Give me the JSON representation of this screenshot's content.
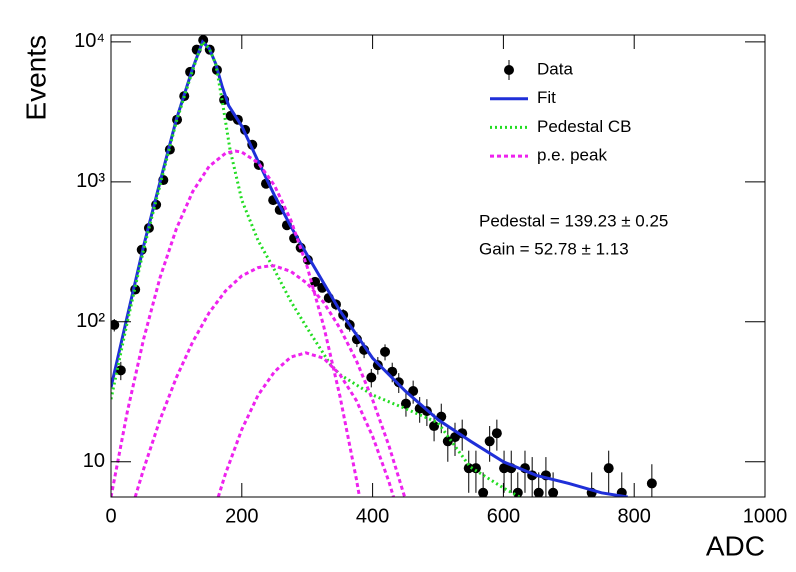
{
  "chart_data": {
    "type": "scatter",
    "x_label": "ADC",
    "y_label": "Events",
    "xlim": [
      0,
      1000
    ],
    "ylim": [
      5.6,
      11200
    ],
    "log_y": true,
    "xticks": [
      0,
      200,
      400,
      600,
      800,
      1000
    ],
    "yticks": [
      10,
      {
        "value": 100,
        "label": "10²"
      },
      {
        "value": 1000,
        "label": "10³"
      },
      {
        "value": 10000,
        "label": "10⁴"
      }
    ],
    "legend": "upper right",
    "annotations": [
      "Pedestal = 139.23 ± 0.25",
      "Gain = 52.78 ± 1.13"
    ],
    "series": [
      {
        "name": "Data",
        "style": "points",
        "color": "#000000",
        "x": [
          5,
          15,
          37,
          47,
          58,
          69,
          80,
          90,
          101,
          112,
          121,
          131,
          141,
          151,
          162,
          173,
          183,
          194,
          205,
          216,
          226,
          237,
          248,
          258,
          269,
          280,
          290,
          301,
          312,
          323,
          333,
          344,
          355,
          365,
          376,
          387,
          398,
          408,
          419,
          430,
          440,
          451,
          462,
          472,
          483,
          494,
          505,
          515,
          526,
          537,
          547,
          558,
          569,
          579,
          590,
          601,
          612,
          622,
          633,
          644,
          654,
          665,
          676,
          735,
          761,
          781,
          827
        ],
        "values": [
          95,
          45,
          170,
          327,
          468,
          686,
          1030,
          1700,
          2780,
          4100,
          6100,
          8800,
          10300,
          8800,
          6300,
          3850,
          2960,
          2780,
          2350,
          1840,
          1320,
          970,
          740,
          630,
          490,
          395,
          338,
          277,
          193,
          175,
          148,
          133,
          112,
          95,
          75,
          63,
          40,
          49,
          61,
          44,
          37,
          26,
          32,
          24,
          23,
          18,
          21,
          14,
          15,
          16,
          9,
          9,
          6,
          14,
          16,
          9,
          9,
          6,
          9,
          8,
          6,
          8,
          6,
          6,
          9,
          6,
          7
        ],
        "errors": [
          9.7,
          6.7,
          13,
          18,
          22,
          26,
          32,
          41,
          53,
          64,
          78,
          94,
          101,
          94,
          79,
          62,
          54,
          53,
          48,
          43,
          36,
          31,
          27,
          25,
          22,
          20,
          18,
          17,
          14,
          13,
          12,
          12,
          11,
          10,
          9,
          8,
          6,
          7,
          8,
          7,
          6,
          5,
          6,
          5,
          5,
          4,
          5,
          4,
          4,
          4,
          3,
          3,
          2.4,
          4,
          4,
          3,
          3,
          2.4,
          3,
          2.8,
          2.4,
          2.8,
          2.4,
          2.4,
          3,
          2.4,
          2.6
        ]
      },
      {
        "name": "Fit",
        "style": "solid",
        "color": "#1f2fd8",
        "x": [
          0,
          25,
          50,
          75,
          100,
          125,
          140,
          150,
          160,
          170,
          180,
          200,
          225,
          250,
          275,
          300,
          350,
          400,
          450,
          500,
          550,
          600,
          650,
          700,
          750,
          790
        ],
        "values": [
          34,
          110,
          350,
          1000,
          2800,
          6500,
          10000,
          9000,
          7000,
          4800,
          3500,
          2500,
          1400,
          800,
          480,
          300,
          120,
          55,
          32,
          20,
          14,
          10,
          8,
          7,
          6,
          5.6
        ]
      },
      {
        "name": "Pedestal CB",
        "style": "dotted",
        "color": "#22dd22",
        "x": [
          0,
          25,
          50,
          75,
          100,
          125,
          140,
          150,
          160,
          170,
          182,
          200,
          225,
          250,
          275,
          300,
          335,
          350,
          400,
          450,
          500,
          549,
          600,
          625
        ],
        "values": [
          28,
          100,
          330,
          950,
          2700,
          6300,
          10000,
          9000,
          7000,
          3800,
          1700,
          740,
          380,
          235,
          140,
          90,
          50,
          42,
          30,
          24,
          19,
          9.2,
          6.5,
          5.6
        ]
      },
      {
        "name": "p.e. peak",
        "style": "dashed",
        "color": "#ee22ee",
        "curves": [
          {
            "x": [
              0,
              25,
              50,
              75,
              100,
              125,
              150,
              175,
              190,
              200,
              225,
              250,
              275,
              300,
              325,
              350,
              375,
              380
            ],
            "values": [
              5.6,
              22.8,
              75.7,
              207,
              463,
              853,
              1290,
              1600,
              1660,
              1630,
              1370,
              942,
              532,
              247,
              94,
              29.5,
              7.6,
              5.6
            ]
          },
          {
            "x": [
              37,
              50,
              75,
              100,
              125,
              150,
              175,
              200,
              225,
              243,
              250,
              275,
              300,
              325,
              350,
              375,
              400,
              425,
              449
            ],
            "values": [
              5.6,
              8.9,
              20,
              40,
              72,
              116,
              166,
              213,
              244,
              251,
              251,
              229,
              188,
              138,
              90,
              53,
              27.7,
              13,
              5.6
            ]
          },
          {
            "x": [
              164,
              175,
              200,
              225,
              250,
              275,
              298,
              325,
              350,
              375,
              400,
              425,
              432
            ],
            "values": [
              5.6,
              8.2,
              17,
              30,
              44,
              56,
              60,
              55,
              42,
              27.5,
              15.2,
              7.2,
              5.6
            ]
          }
        ]
      }
    ]
  }
}
